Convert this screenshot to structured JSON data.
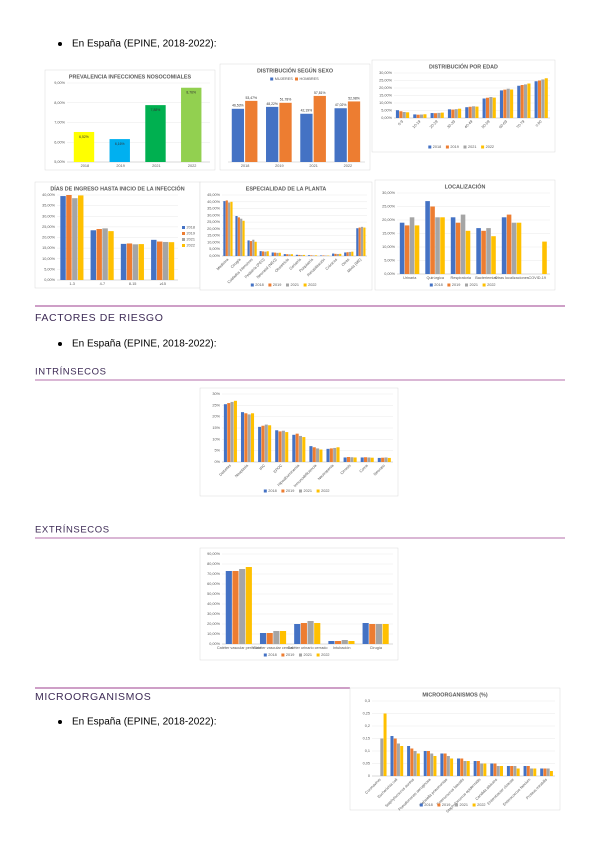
{
  "bullets": [
    "En España (EPINE, 2018-2022):",
    "En España (EPINE, 2018-2022):",
    "En España (EPINE, 2018-2022):"
  ],
  "headings": [
    "FACTORES DE RIESGO",
    "INTRÍNSECOS",
    "EXTRÍNSECOS",
    "MICROORGANISMOS"
  ],
  "charts": [
    {
      "type": "bar",
      "title": "PREVALENCIA INFECCIONES NOSOCOMIALES",
      "categories": [
        "2018",
        "2019",
        "2021",
        "2022"
      ],
      "values": [
        6.52,
        6.16,
        7.88,
        8.76
      ],
      "value_labels": [
        "6,52%",
        "6,16%",
        "7,88%",
        "8,76%"
      ],
      "colors": [
        "#ffff00",
        "#00b0f0",
        "#00b050",
        "#92d050"
      ],
      "ylim": [
        5,
        9
      ],
      "yticks": [
        {
          "value": 5,
          "label": "5,00%"
        },
        {
          "value": 6,
          "label": "6,00%"
        },
        {
          "value": 7,
          "label": "7,00%"
        },
        {
          "value": 8,
          "label": "8,00%"
        },
        {
          "value": 9,
          "label": "9,00%"
        }
      ],
      "grid": true
    },
    {
      "type": "bar",
      "title": "DISTRIBUCIÓN SEGÚN SEXO",
      "categories": [
        "2018",
        "2019",
        "2021",
        "2022"
      ],
      "legend": "top",
      "series": [
        {
          "name": "MUJERES",
          "color": "#4472c4",
          "values": [
            46.53,
            48.22,
            42.19,
            47.02
          ],
          "value_labels": [
            "46,53%",
            "48,22%",
            "42,19%",
            "47,02%"
          ]
        },
        {
          "name": "HOMBRES",
          "color": "#ed7d31",
          "values": [
            53.47,
            51.78,
            57.81,
            52.98
          ],
          "value_labels": [
            "53,47%",
            "51,78%",
            "57,81%",
            "52,98%"
          ]
        }
      ]
    },
    {
      "type": "bar",
      "title": "DISTRIBUCIÓN POR EDAD",
      "categories": [
        "0-9",
        "10-19",
        "20-29",
        "30-39",
        "40-49",
        "50-59",
        "60-69",
        "70-79",
        "≥ 80"
      ],
      "legend": "bottom",
      "series": [
        {
          "name": "2018",
          "color": "#4472c4",
          "values": [
            5.2,
            2.4,
            3.3,
            5.8,
            7.2,
            13.0,
            18.4,
            21.5,
            24.5
          ]
        },
        {
          "name": "2019",
          "color": "#ed7d31",
          "values": [
            4.5,
            2.2,
            3.2,
            5.6,
            7.5,
            13.5,
            18.9,
            22.0,
            25.0
          ]
        },
        {
          "name": "2021",
          "color": "#a5a5a5",
          "values": [
            4.0,
            2.3,
            3.4,
            5.9,
            7.8,
            14.0,
            19.5,
            22.4,
            25.7
          ]
        },
        {
          "name": "2022",
          "color": "#ffc000",
          "values": [
            3.8,
            2.5,
            3.6,
            6.2,
            7.6,
            13.6,
            19.0,
            23.0,
            26.5
          ]
        }
      ],
      "ylim": [
        0,
        30
      ],
      "yticks": [
        {
          "value": 0,
          "label": "0,00%"
        },
        {
          "value": 5,
          "label": "5,00%"
        },
        {
          "value": 10,
          "label": "10,00%"
        },
        {
          "value": 15,
          "label": "15,00%"
        },
        {
          "value": 20,
          "label": "20,00%"
        },
        {
          "value": 25,
          "label": "25,00%"
        },
        {
          "value": 30,
          "label": "30,00%"
        }
      ],
      "grid": true
    },
    {
      "type": "bar",
      "title": "DÍAS DE INGRESO HASTA INICIO DE LA INFECCIÓN",
      "categories": [
        "1-3",
        "4-7",
        "8-15",
        "≥15"
      ],
      "legend": "right",
      "series": [
        {
          "name": "2018",
          "color": "#4472c4",
          "values": [
            39.5,
            23.4,
            17.0,
            18.9
          ]
        },
        {
          "name": "2019",
          "color": "#ed7d31",
          "values": [
            40.0,
            24.0,
            17.2,
            18.1
          ]
        },
        {
          "name": "2021",
          "color": "#a5a5a5",
          "values": [
            38.5,
            24.3,
            16.8,
            17.9
          ]
        },
        {
          "name": "2022",
          "color": "#ffc000",
          "values": [
            39.8,
            23.0,
            16.9,
            17.8
          ]
        }
      ],
      "ylim": [
        0,
        40
      ],
      "yticks": [
        {
          "value": 0,
          "label": "0,00%"
        },
        {
          "value": 5,
          "label": "5,00%"
        },
        {
          "value": 10,
          "label": "10,00%"
        },
        {
          "value": 15,
          "label": "15,00%"
        },
        {
          "value": 20,
          "label": "20,00%"
        },
        {
          "value": 25,
          "label": "25,00%"
        },
        {
          "value": 30,
          "label": "30,00%"
        },
        {
          "value": 35,
          "label": "35,00%"
        },
        {
          "value": 40,
          "label": "40,00%"
        }
      ],
      "grid": true
    },
    {
      "type": "bar",
      "title": "ESPECIALIDAD DE LA PLANTA",
      "categories": [
        "Medicina",
        "Cirugía",
        "Cuidados intensivos",
        "Pediatría (PED)",
        "Neonatal (NEO)",
        "Obstetricia",
        "Geriatría",
        "Psiquiatría",
        "Rehabilitación",
        "Crónicos",
        "Otras",
        "Mixta (ME)"
      ],
      "legend": "bottom",
      "series": [
        {
          "name": "2018",
          "color": "#4472c4",
          "values": [
            40.5,
            29.5,
            11.5,
            3.6,
            2.6,
            1.4,
            0.9,
            0.6,
            0.4,
            1.8,
            2.6,
            20.5
          ]
        },
        {
          "name": "2019",
          "color": "#ed7d31",
          "values": [
            41.0,
            28.5,
            11.0,
            3.4,
            2.5,
            1.3,
            0.8,
            0.5,
            0.4,
            1.6,
            2.8,
            21.0
          ]
        },
        {
          "name": "2021",
          "color": "#a5a5a5",
          "values": [
            39.5,
            27.5,
            12.0,
            3.2,
            2.3,
            1.2,
            0.7,
            0.4,
            0.3,
            1.5,
            3.0,
            21.5
          ]
        },
        {
          "name": "2022",
          "color": "#ffc000",
          "values": [
            40.0,
            26.0,
            10.5,
            3.5,
            2.4,
            1.3,
            0.8,
            0.5,
            0.3,
            1.6,
            3.2,
            21.0
          ]
        }
      ],
      "ylim": [
        0,
        45
      ],
      "yticks": [
        {
          "value": 0,
          "label": "0,00%"
        },
        {
          "value": 5,
          "label": "5,00%"
        },
        {
          "value": 10,
          "label": "10,00%"
        },
        {
          "value": 15,
          "label": "15,00%"
        },
        {
          "value": 20,
          "label": "20,00%"
        },
        {
          "value": 25,
          "label": "25,00%"
        },
        {
          "value": 30,
          "label": "30,00%"
        },
        {
          "value": 35,
          "label": "35,00%"
        },
        {
          "value": 40,
          "label": "40,00%"
        },
        {
          "value": 45,
          "label": "45,00%"
        }
      ],
      "grid": true
    },
    {
      "type": "bar",
      "title": "LOCALIZACIÓN",
      "categories": [
        "Urinaria",
        "Quirúrgica",
        "Respiratoria",
        "Bacteriemias",
        "Otras localizaciones",
        "COVID-19"
      ],
      "legend": "bottom",
      "series": [
        {
          "name": "2018",
          "color": "#4472c4",
          "values": [
            19,
            27,
            21,
            17,
            21,
            0
          ]
        },
        {
          "name": "2019",
          "color": "#ed7d31",
          "values": [
            18,
            25,
            19,
            16,
            22,
            0
          ]
        },
        {
          "name": "2021",
          "color": "#a5a5a5",
          "values": [
            21,
            21,
            22,
            17,
            19,
            0
          ]
        },
        {
          "name": "2022",
          "color": "#ffc000",
          "values": [
            18,
            21,
            16,
            14,
            19,
            12
          ]
        }
      ],
      "ylim": [
        0,
        30
      ],
      "yticks": [
        {
          "value": 0,
          "label": "0,00%"
        },
        {
          "value": 5,
          "label": "5,00%"
        },
        {
          "value": 10,
          "label": "10,00%"
        },
        {
          "value": 15,
          "label": "15,00%"
        },
        {
          "value": 20,
          "label": "20,00%"
        },
        {
          "value": 25,
          "label": "25,00%"
        },
        {
          "value": 30,
          "label": "30,00%"
        }
      ],
      "grid": true
    },
    {
      "type": "bar",
      "title": "",
      "categories": [
        "Diabetes",
        "Neoplasia",
        "IRC",
        "EPOC",
        "Hipoalbuminemia",
        "Inmunodeficiencia",
        "Neutropenia",
        "Cirrosis",
        "Coma",
        "Neonato"
      ],
      "legend": "bottom",
      "series": [
        {
          "name": "2018",
          "color": "#4472c4",
          "values": [
            25.5,
            22.0,
            15.5,
            14.0,
            12.0,
            7.0,
            5.8,
            2.0,
            2.0,
            1.8
          ]
        },
        {
          "name": "2019",
          "color": "#ed7d31",
          "values": [
            26.0,
            21.5,
            16.0,
            13.5,
            12.5,
            6.5,
            6.0,
            2.2,
            2.1,
            1.9
          ]
        },
        {
          "name": "2021",
          "color": "#a5a5a5",
          "values": [
            26.5,
            21.0,
            16.5,
            13.8,
            11.5,
            6.0,
            6.2,
            2.1,
            2.0,
            2.0
          ]
        },
        {
          "name": "2022",
          "color": "#ffc000",
          "values": [
            27.0,
            21.5,
            16.2,
            13.2,
            11.0,
            5.5,
            6.5,
            2.0,
            1.9,
            1.8
          ]
        }
      ],
      "ylim": [
        0,
        30
      ],
      "yticks": [
        {
          "value": 0,
          "label": "0%"
        },
        {
          "value": 5,
          "label": "5%"
        },
        {
          "value": 10,
          "label": "10%"
        },
        {
          "value": 15,
          "label": "15%"
        },
        {
          "value": 20,
          "label": "20%"
        },
        {
          "value": 25,
          "label": "25%"
        },
        {
          "value": 30,
          "label": "30%"
        }
      ],
      "grid": true
    },
    {
      "type": "bar",
      "title": "",
      "categories": [
        "Catéter vascular periférico",
        "Catéter vascular central",
        "Catéter urinario cerrado",
        "Intubación",
        "Cirugía"
      ],
      "legend": "bottom",
      "series": [
        {
          "name": "2018",
          "color": "#4472c4",
          "values": [
            73,
            11,
            20,
            3,
            21
          ]
        },
        {
          "name": "2019",
          "color": "#ed7d31",
          "values": [
            73,
            11,
            21,
            3,
            20
          ]
        },
        {
          "name": "2021",
          "color": "#a5a5a5",
          "values": [
            75,
            13,
            23,
            4,
            20
          ]
        },
        {
          "name": "2022",
          "color": "#ffc000",
          "values": [
            77,
            13,
            21,
            3,
            20
          ]
        }
      ],
      "ylim": [
        0,
        90
      ],
      "yticks": [
        {
          "value": 0,
          "label": "0,00%"
        },
        {
          "value": 10,
          "label": "10,00%"
        },
        {
          "value": 20,
          "label": "20,00%"
        },
        {
          "value": 30,
          "label": "30,00%"
        },
        {
          "value": 40,
          "label": "40,00%"
        },
        {
          "value": 50,
          "label": "50,00%"
        },
        {
          "value": 60,
          "label": "60,00%"
        },
        {
          "value": 70,
          "label": "70,00%"
        },
        {
          "value": 80,
          "label": "80,00%"
        },
        {
          "value": 90,
          "label": "90,00%"
        }
      ],
      "grid": true
    },
    {
      "type": "bar",
      "title": "MICROORGANISMOS (%)",
      "categories": [
        "Coronavirus",
        "Escherichia coli",
        "Staphylococcus aureus",
        "Pseudomonas aeruginosa",
        "Klebsiella pneumoniae",
        "Enterococcus faecalis",
        "Staphylococcus epidermidis",
        "Candida albicans",
        "Enterobacter cloacae",
        "Enterococcus faecium",
        "Proteus mirabilis"
      ],
      "legend": "bottom",
      "series": [
        {
          "name": "2018",
          "color": "#4472c4",
          "values": [
            0,
            0.16,
            0.12,
            0.1,
            0.09,
            0.07,
            0.06,
            0.05,
            0.04,
            0.04,
            0.03
          ]
        },
        {
          "name": "2019",
          "color": "#ed7d31",
          "values": [
            0,
            0.15,
            0.11,
            0.1,
            0.09,
            0.07,
            0.06,
            0.05,
            0.04,
            0.04,
            0.03
          ]
        },
        {
          "name": "2021",
          "color": "#a5a5a5",
          "values": [
            0.15,
            0.13,
            0.1,
            0.09,
            0.08,
            0.06,
            0.05,
            0.04,
            0.04,
            0.03,
            0.03
          ]
        },
        {
          "name": "2022",
          "color": "#ffc000",
          "values": [
            0.25,
            0.12,
            0.09,
            0.08,
            0.07,
            0.06,
            0.05,
            0.04,
            0.03,
            0.03,
            0.02
          ]
        }
      ],
      "ylim": [
        0,
        0.3
      ],
      "yticks": [
        0,
        {
          "value": 0.05,
          "label": "0,05"
        },
        {
          "value": 0.1,
          "label": "0,1"
        },
        {
          "value": 0.15,
          "label": "0,15"
        },
        {
          "value": 0.2,
          "label": "0,2"
        },
        {
          "value": 0.25,
          "label": "0,25"
        },
        {
          "value": 0.3,
          "label": "0,3"
        }
      ],
      "grid": true
    }
  ]
}
